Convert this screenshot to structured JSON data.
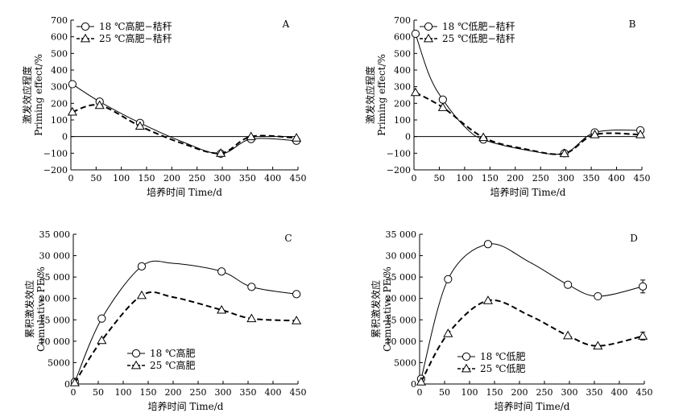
{
  "chart_data": [
    {
      "type": "line",
      "title": "A",
      "xlabel": "培养时间 Time/d",
      "ylabel": [
        "激发效应程度",
        "Priming effect/%"
      ],
      "xlim": [
        0,
        450
      ],
      "ylim": [
        -200,
        700
      ],
      "xticks": [
        0,
        50,
        100,
        150,
        200,
        250,
        300,
        350,
        400,
        450
      ],
      "yticks": [
        -200,
        -100,
        0,
        100,
        200,
        300,
        400,
        500,
        600,
        700
      ],
      "ytick_labels": [
        "−200",
        "−100",
        "0",
        "100",
        "200",
        "300",
        "400",
        "500",
        "600",
        "700"
      ],
      "zero_line": true,
      "legend": "top-left",
      "series": [
        {
          "name": "18 ℃高肥−秸秆",
          "marker": "circle",
          "style": "solid",
          "x": [
            3,
            57,
            137,
            297,
            357,
            447
          ],
          "y": [
            315,
            210,
            82,
            -103,
            -15,
            -25
          ],
          "curve_x": [
            3,
            57,
            137,
            220,
            297,
            357,
            447
          ],
          "curve_y": [
            315,
            210,
            82,
            -30,
            -103,
            -15,
            -25
          ]
        },
        {
          "name": "25 ℃高肥−秸秆",
          "marker": "triangle",
          "style": "dashed",
          "x": [
            3,
            57,
            137,
            297,
            357,
            447
          ],
          "y": [
            148,
            188,
            63,
            -100,
            0,
            -8
          ],
          "curve_x": [
            3,
            57,
            137,
            220,
            297,
            357,
            447
          ],
          "curve_y": [
            148,
            188,
            63,
            -40,
            -100,
            0,
            -8
          ]
        }
      ]
    },
    {
      "type": "line",
      "title": "B",
      "xlabel": "培养时间 Time/d",
      "ylabel": [
        "激发效应程度",
        "Priming effect/%"
      ],
      "xlim": [
        0,
        450
      ],
      "ylim": [
        -200,
        700
      ],
      "xticks": [
        0,
        50,
        100,
        150,
        200,
        250,
        300,
        350,
        400,
        450
      ],
      "yticks": [
        -200,
        -100,
        0,
        100,
        200,
        300,
        400,
        500,
        600,
        700
      ],
      "ytick_labels": [
        "−200",
        "−100",
        "0",
        "100",
        "200",
        "300",
        "400",
        "500",
        "600",
        "700"
      ],
      "zero_line": true,
      "legend": "top-left",
      "series": [
        {
          "name": "18 ℃低肥−秸秆",
          "marker": "circle",
          "style": "solid",
          "x": [
            3,
            57,
            137,
            297,
            357,
            447
          ],
          "y": [
            618,
            222,
            -18,
            -100,
            25,
            38
          ],
          "curve_x": [
            3,
            30,
            57,
            100,
            137,
            220,
            297,
            357,
            447
          ],
          "curve_y": [
            618,
            370,
            222,
            60,
            -18,
            -80,
            -100,
            25,
            38
          ]
        },
        {
          "name": "25 ℃低肥−秸秆",
          "marker": "triangle",
          "style": "dashed",
          "x": [
            3,
            57,
            137,
            297,
            357,
            447
          ],
          "y": [
            265,
            175,
            -5,
            -102,
            12,
            12
          ],
          "curve_x": [
            3,
            57,
            137,
            220,
            297,
            357,
            447
          ],
          "curve_y": [
            265,
            175,
            -5,
            -75,
            -102,
            12,
            12
          ]
        }
      ]
    },
    {
      "type": "line",
      "title": "C",
      "xlabel": "培养时间 Time/d",
      "ylabel": [
        "累积激发效应",
        "Cumulative PE/%"
      ],
      "xlim": [
        0,
        450
      ],
      "ylim": [
        0,
        35000
      ],
      "xticks": [
        0,
        50,
        100,
        150,
        200,
        250,
        300,
        350,
        400,
        450
      ],
      "yticks": [
        0,
        5000,
        10000,
        15000,
        20000,
        25000,
        30000,
        35000
      ],
      "ytick_labels": [
        "0",
        "5000",
        "10 000",
        "15 000",
        "20 000",
        "25 000",
        "30 000",
        "35 000"
      ],
      "zero_line": false,
      "legend": "bottom-left",
      "series": [
        {
          "name": "18 ℃高肥",
          "marker": "circle",
          "style": "solid",
          "x": [
            3,
            57,
            137,
            297,
            357,
            447
          ],
          "y": [
            500,
            15300,
            27500,
            26300,
            22700,
            21000
          ],
          "curve_x": [
            3,
            57,
            137,
            200,
            297,
            357,
            447
          ],
          "curve_y": [
            500,
            15300,
            27500,
            28200,
            26300,
            22700,
            21000
          ]
        },
        {
          "name": "25 ℃高肥",
          "marker": "triangle",
          "style": "dashed",
          "x": [
            3,
            57,
            137,
            297,
            357,
            447
          ],
          "y": [
            300,
            10200,
            20700,
            17300,
            15300,
            14800
          ],
          "curve_x": [
            3,
            57,
            137,
            200,
            297,
            357,
            447
          ],
          "curve_y": [
            300,
            10200,
            20700,
            20300,
            17300,
            15300,
            14800
          ]
        }
      ]
    },
    {
      "type": "line",
      "title": "D",
      "xlabel": "培养时间 Time/d",
      "ylabel": [
        "累积激发效应",
        "Cumulative PE/%"
      ],
      "xlim": [
        0,
        450
      ],
      "ylim": [
        0,
        35000
      ],
      "xticks": [
        0,
        50,
        100,
        150,
        200,
        250,
        300,
        350,
        400,
        450
      ],
      "yticks": [
        0,
        5000,
        10000,
        15000,
        20000,
        25000,
        30000,
        35000
      ],
      "ytick_labels": [
        "0",
        "5000",
        "10 000",
        "15 000",
        "20 000",
        "25 000",
        "30 000",
        "35 000"
      ],
      "zero_line": false,
      "legend": "bottom-left",
      "series": [
        {
          "name": "18 ℃低肥",
          "marker": "circle",
          "style": "solid",
          "x": [
            3,
            57,
            137,
            297,
            357,
            447
          ],
          "y": [
            1200,
            24500,
            32700,
            23200,
            20500,
            22800
          ],
          "curve_x": [
            3,
            57,
            137,
            220,
            297,
            357,
            447
          ],
          "curve_y": [
            1200,
            24500,
            32700,
            28500,
            23200,
            20500,
            22800
          ],
          "errors": [
            0,
            0,
            0,
            0,
            0,
            1500
          ]
        },
        {
          "name": "25 ℃低肥",
          "marker": "triangle",
          "style": "dashed",
          "x": [
            3,
            57,
            137,
            297,
            357,
            447
          ],
          "y": [
            500,
            11800,
            19500,
            11300,
            8900,
            11200
          ],
          "curve_x": [
            3,
            57,
            137,
            220,
            297,
            357,
            447
          ],
          "curve_y": [
            500,
            11800,
            19500,
            16000,
            11300,
            8900,
            11200
          ],
          "errors": [
            0,
            0,
            0,
            0,
            0,
            900
          ]
        }
      ]
    }
  ]
}
